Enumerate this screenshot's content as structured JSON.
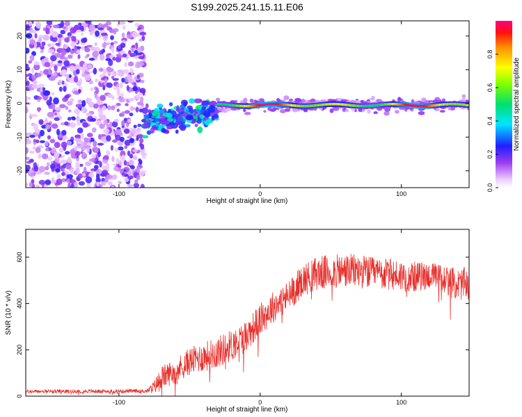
{
  "figure_title": "S199.2025.241.15.11.E06",
  "colors": {
    "snr_line": "#e8302c",
    "axis": "#000000",
    "background": "#ffffff"
  },
  "chart_data": [
    {
      "type": "heatmap",
      "title": "S199.2025.241.15.11.E06",
      "xlabel": "Height of straight line (km)",
      "ylabel": "Frequency (Hz)",
      "xlim": [
        -166,
        148
      ],
      "ylim": [
        -25,
        24.5
      ],
      "xticks": [
        -100,
        0,
        100
      ],
      "yticks": [
        -20,
        -10,
        0,
        10,
        20
      ],
      "colorbar": {
        "label": "Normalized spectral amplitude",
        "range": [
          0,
          1
        ],
        "ticks": [
          "0.0",
          "0.2",
          "0.4",
          "0.6",
          "0.8"
        ],
        "tick_values": [
          0,
          0.2,
          0.4,
          0.6,
          0.8
        ],
        "colormap": "rainbow"
      },
      "description_segments": [
        {
          "x_range": [
            -166,
            -82
          ],
          "pattern": "scattered low-amplitude noise",
          "amplitude": [
            0.05,
            0.25
          ]
        },
        {
          "x_range": [
            -82,
            -30
          ],
          "pattern": "blotchy signal",
          "freq_center": -5,
          "freq_spread": 4,
          "amplitude": [
            0.15,
            0.5
          ]
        },
        {
          "x_range": [
            -30,
            148
          ],
          "pattern": "narrow continuous line",
          "freq_center": -0.5,
          "amplitude": [
            0.4,
            1.0
          ]
        }
      ]
    },
    {
      "type": "line",
      "title": "",
      "xlabel": "Height of straight line (km)",
      "ylabel": "SNR (10 * v/v)",
      "xlim": [
        -166,
        148
      ],
      "ylim": [
        0,
        720
      ],
      "xticks": [
        -100,
        0,
        100
      ],
      "yticks": [
        0,
        200,
        400,
        600
      ],
      "series": [
        {
          "name": "SNR",
          "envelope_x": [
            -166,
            -80,
            -75,
            -70,
            -60,
            -50,
            -40,
            -30,
            -20,
            -10,
            0,
            10,
            20,
            30,
            40,
            50,
            60,
            70,
            80,
            90,
            100,
            110,
            120,
            130,
            140,
            148
          ],
          "envelope_mean": [
            20,
            22,
            40,
            80,
            110,
            150,
            170,
            190,
            220,
            260,
            330,
            390,
            430,
            500,
            530,
            535,
            540,
            540,
            530,
            525,
            520,
            515,
            520,
            505,
            480,
            490
          ],
          "envelope_spread": [
            8,
            8,
            30,
            50,
            55,
            60,
            65,
            70,
            70,
            70,
            70,
            70,
            70,
            70,
            75,
            75,
            75,
            75,
            70,
            70,
            70,
            65,
            60,
            65,
            70,
            70
          ]
        }
      ]
    }
  ]
}
